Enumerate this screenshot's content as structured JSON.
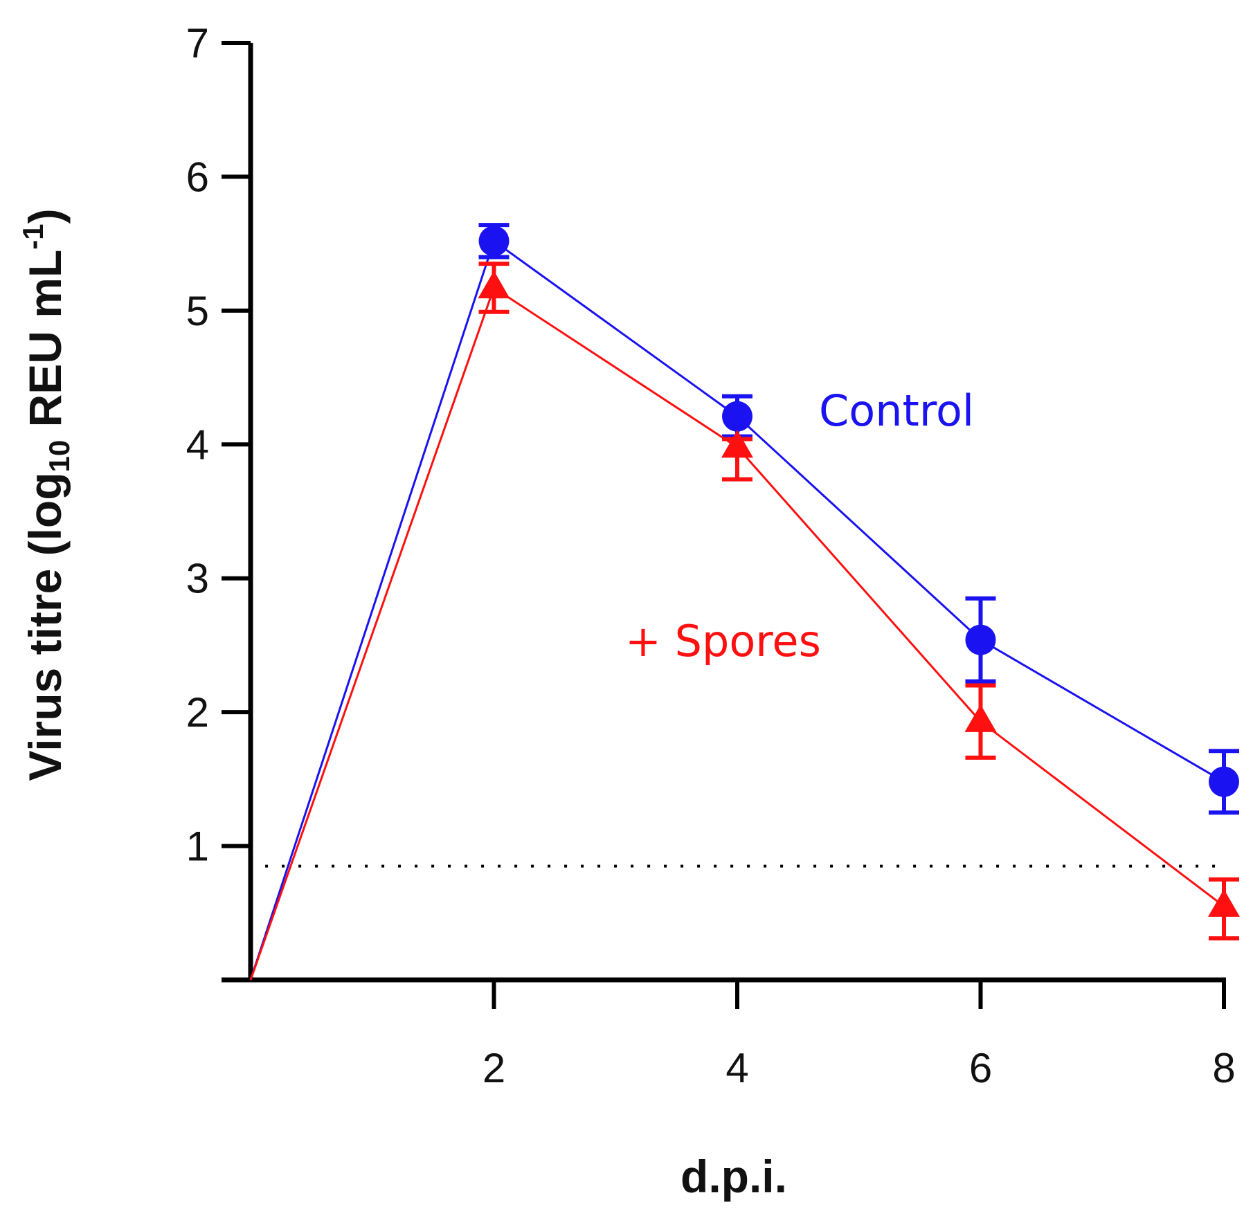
{
  "chart_data": {
    "type": "line",
    "title": "",
    "xlabel": "d.p.i.",
    "ylabel": {
      "prefix": "Virus titre (log",
      "subscript": "10",
      "middle": " REU mL",
      "superscript": "-1",
      "suffix": ")"
    },
    "xlim": [
      0,
      8
    ],
    "ylim": [
      0,
      7
    ],
    "x_ticks": [
      2,
      4,
      6,
      8
    ],
    "y_ticks": [
      1,
      2,
      3,
      4,
      5,
      6,
      7
    ],
    "detection_limit": 0.85,
    "grid": false,
    "series": [
      {
        "name": "Control",
        "color": "#1a12f0",
        "marker": "circle",
        "label_text": "Control",
        "x": [
          0,
          2,
          4,
          6,
          8
        ],
        "y": [
          0,
          5.52,
          4.21,
          2.54,
          1.48
        ],
        "err_low": [
          0,
          0.12,
          0.15,
          0.31,
          0.23
        ],
        "err_high": [
          0,
          0.12,
          0.15,
          0.31,
          0.23
        ]
      },
      {
        "name": "+ Spores",
        "color": "#ff1010",
        "marker": "triangle",
        "label_text": "+ Spores",
        "x": [
          0,
          2,
          4,
          6,
          8
        ],
        "y": [
          0,
          5.17,
          3.98,
          1.93,
          0.55
        ],
        "err_low": [
          0,
          0.18,
          0.24,
          0.27,
          0.24
        ],
        "err_high": [
          0,
          0.18,
          0.06,
          0.27,
          0.2
        ]
      }
    ]
  }
}
